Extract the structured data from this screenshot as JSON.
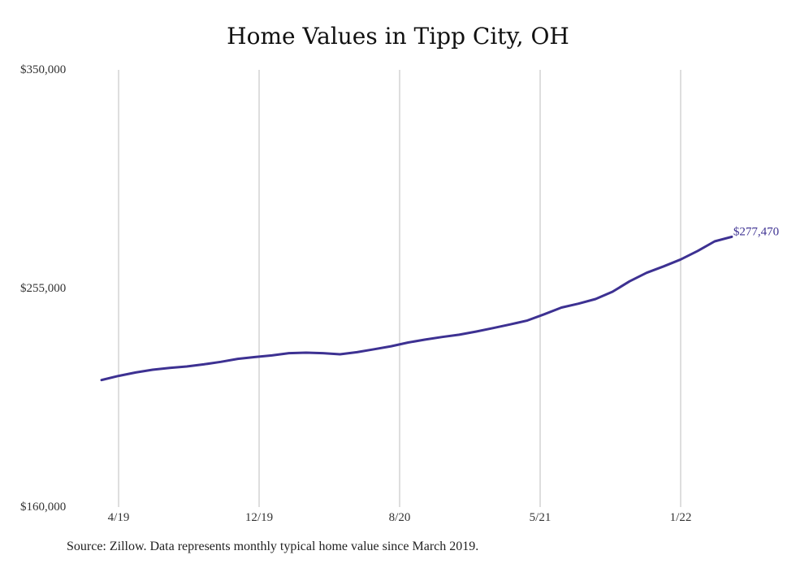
{
  "chart_data": {
    "type": "line",
    "title": "Home Values in Tipp City, OH",
    "source_note": "Source: Zillow. Data represents monthly typical home value since March 2019.",
    "xlabel": "",
    "ylabel": "",
    "x_tick_labels": [
      "4/19",
      "12/19",
      "8/20",
      "5/21",
      "1/22"
    ],
    "y_tick_labels": [
      "$350,000",
      "$255,000",
      "$160,000"
    ],
    "ylim": [
      160000,
      350000
    ],
    "grid": "vertical",
    "end_label": "$277,470",
    "series": [
      {
        "color": "#3d3192",
        "points": [
          {
            "x": "2019-03",
            "y": 215200
          },
          {
            "x": "2019-04",
            "y": 217000
          },
          {
            "x": "2019-05",
            "y": 218500
          },
          {
            "x": "2019-06",
            "y": 219700
          },
          {
            "x": "2019-07",
            "y": 220500
          },
          {
            "x": "2019-08",
            "y": 221100
          },
          {
            "x": "2019-09",
            "y": 222000
          },
          {
            "x": "2019-10",
            "y": 223100
          },
          {
            "x": "2019-11",
            "y": 224400
          },
          {
            "x": "2019-12",
            "y": 225200
          },
          {
            "x": "2020-01",
            "y": 225900
          },
          {
            "x": "2020-02",
            "y": 226900
          },
          {
            "x": "2020-03",
            "y": 227100
          },
          {
            "x": "2020-04",
            "y": 226900
          },
          {
            "x": "2020-05",
            "y": 226400
          },
          {
            "x": "2020-06",
            "y": 227300
          },
          {
            "x": "2020-07",
            "y": 228600
          },
          {
            "x": "2020-08",
            "y": 229900
          },
          {
            "x": "2020-09",
            "y": 231500
          },
          {
            "x": "2020-10",
            "y": 232800
          },
          {
            "x": "2020-11",
            "y": 233900
          },
          {
            "x": "2020-12",
            "y": 234900
          },
          {
            "x": "2021-01",
            "y": 236300
          },
          {
            "x": "2021-02",
            "y": 237800
          },
          {
            "x": "2021-03",
            "y": 239400
          },
          {
            "x": "2021-04",
            "y": 241100
          },
          {
            "x": "2021-05",
            "y": 243800
          },
          {
            "x": "2021-06",
            "y": 246700
          },
          {
            "x": "2021-07",
            "y": 248400
          },
          {
            "x": "2021-08",
            "y": 250400
          },
          {
            "x": "2021-09",
            "y": 253600
          },
          {
            "x": "2021-10",
            "y": 258100
          },
          {
            "x": "2021-11",
            "y": 261800
          },
          {
            "x": "2021-12",
            "y": 264600
          },
          {
            "x": "2022-01",
            "y": 267600
          },
          {
            "x": "2022-02",
            "y": 271300
          },
          {
            "x": "2022-03",
            "y": 275500
          },
          {
            "x": "2022-04",
            "y": 277470
          }
        ]
      }
    ]
  }
}
